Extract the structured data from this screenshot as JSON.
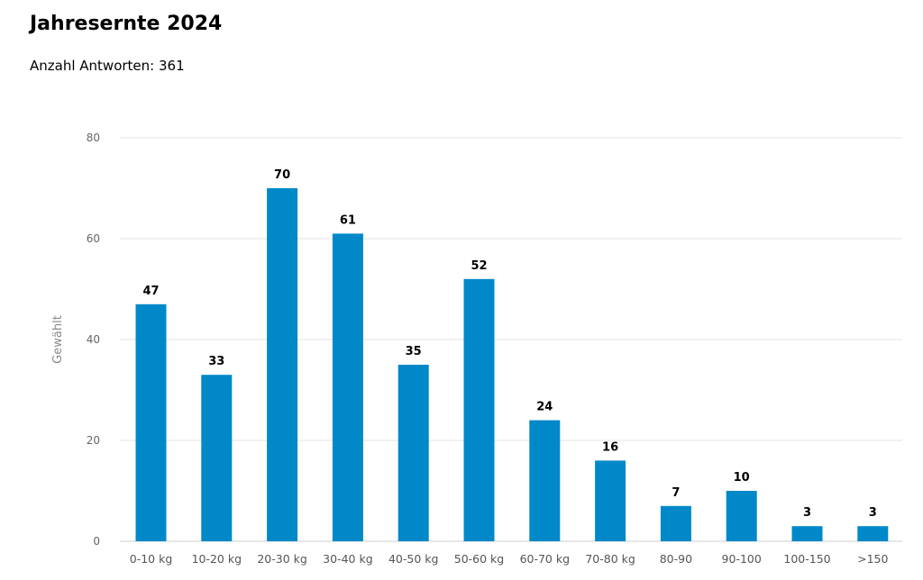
{
  "chart_data": {
    "type": "bar",
    "title": "Jahresernte 2024",
    "subtitle": "Anzahl Antworten: 361",
    "xlabel": "",
    "ylabel": "Gewählt",
    "categories": [
      "0-10 kg",
      "10-20 kg",
      "20-30 kg",
      "30-40 kg",
      "40-50 kg",
      "50-60 kg",
      "60-70 kg",
      "70-80 kg",
      "80-90",
      "90-100",
      "100-150",
      ">150"
    ],
    "values": [
      47,
      33,
      70,
      61,
      35,
      52,
      24,
      16,
      7,
      10,
      3,
      3
    ],
    "ylim": [
      0,
      80
    ],
    "yticks": [
      0,
      20,
      40,
      60,
      80
    ],
    "grid": true,
    "data_labels": true,
    "bar_color": "#0088c9",
    "grid_color": "#e3e3e3"
  }
}
